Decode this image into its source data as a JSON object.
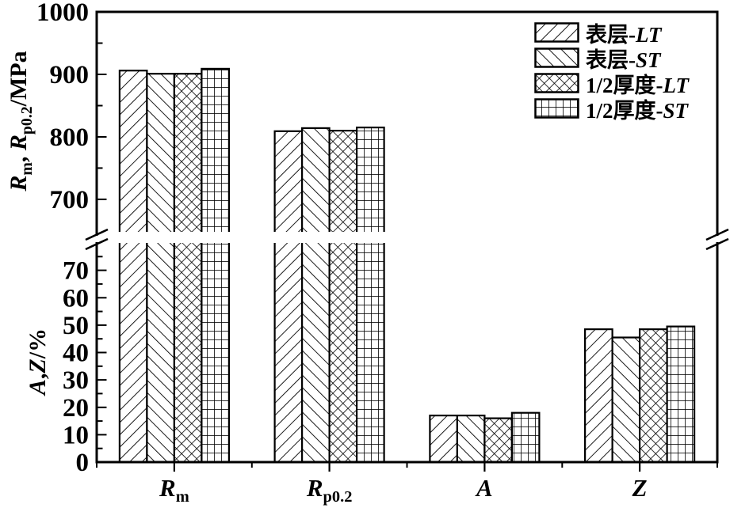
{
  "figure": {
    "background_color": "#ffffff",
    "ink_color": "#000000"
  },
  "chart_data": {
    "type": "bar",
    "title": "",
    "grid": false,
    "broken_y_axis": true,
    "legend_position": "upper-right-inside",
    "categories": [
      {
        "base": "R",
        "sub": "m",
        "panel": "top",
        "unit": "MPa"
      },
      {
        "base": "R",
        "sub": "p0.2",
        "panel": "top",
        "unit": "MPa"
      },
      {
        "base": "A",
        "sub": "",
        "panel": "bottom",
        "unit": "%"
      },
      {
        "base": "Z",
        "sub": "",
        "panel": "bottom",
        "unit": "%"
      }
    ],
    "series": [
      {
        "name": "表层-LT",
        "pattern": "diag-fwd",
        "values": [
          906,
          809,
          17,
          48.5
        ]
      },
      {
        "name": "表层-ST",
        "pattern": "diag-back",
        "values": [
          901,
          814,
          17,
          45.5
        ]
      },
      {
        "name": "1/2厚度-LT",
        "pattern": "cross",
        "values": [
          901,
          810,
          16,
          48.5
        ]
      },
      {
        "name": "1/2厚度-ST",
        "pattern": "grid",
        "values": [
          909,
          815,
          18,
          49.5
        ]
      }
    ],
    "panels": [
      {
        "id": "top",
        "axis_label": "Rm, Rp0.2/MPa",
        "range": [
          648,
          1000
        ],
        "major_ticks": [
          700,
          800,
          900,
          1000
        ],
        "minor_ticks": [
          750,
          850,
          950
        ]
      },
      {
        "id": "bottom",
        "axis_label": "A,Z/%",
        "range": [
          0,
          80
        ],
        "major_ticks": [
          0,
          10,
          20,
          30,
          40,
          50,
          60,
          70
        ],
        "minor_ticks": [
          5,
          15,
          25,
          35,
          45,
          55,
          65,
          75
        ]
      }
    ]
  },
  "y_axis_top_label": {
    "r1": "R",
    "sub1": "m",
    "sep": ", ",
    "r2": "R",
    "sub2": "p0.2",
    "unit": "/MPa"
  },
  "y_axis_bottom_label": {
    "a": "A",
    "comma": ",",
    "z": "Z",
    "unit": "/%"
  },
  "legend": {
    "items": [
      {
        "prefix": "表层-",
        "code": "LT",
        "pattern": "diag-fwd"
      },
      {
        "prefix": "表层-",
        "code": "ST",
        "pattern": "diag-back"
      },
      {
        "prefix": "1/2厚度-",
        "code": "LT",
        "pattern": "cross"
      },
      {
        "prefix": "1/2厚度-",
        "code": "ST",
        "pattern": "grid"
      }
    ]
  }
}
